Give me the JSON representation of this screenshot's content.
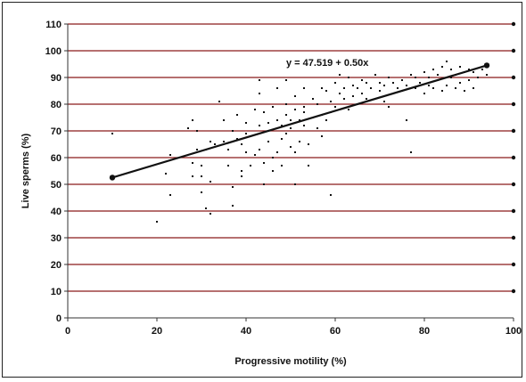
{
  "chart_data": {
    "type": "scatter",
    "xlabel": "Progressive motility (%)",
    "ylabel": "Live sperms (%)",
    "xlim": [
      0,
      100
    ],
    "ylim": [
      0,
      110
    ],
    "xticks": [
      "0",
      "20",
      "40",
      "60",
      "80",
      "100"
    ],
    "yticks": [
      "0",
      "10",
      "20",
      "30",
      "40",
      "50",
      "60",
      "70",
      "80",
      "90",
      "100",
      "110"
    ],
    "grid": "horizontal",
    "gridline_color": "#8b1a1a",
    "point_color": "#111111",
    "annotation": "y = 47.519 + 0.50x",
    "trendline": {
      "intercept": 47.519,
      "slope": 0.5,
      "x": [
        10,
        94
      ]
    },
    "points": [
      [
        10,
        69
      ],
      [
        20,
        36
      ],
      [
        22,
        54
      ],
      [
        23,
        46
      ],
      [
        23,
        61
      ],
      [
        27,
        71
      ],
      [
        28,
        74
      ],
      [
        28,
        58
      ],
      [
        28,
        53
      ],
      [
        29,
        70
      ],
      [
        29,
        63
      ],
      [
        30,
        57
      ],
      [
        30,
        47
      ],
      [
        30,
        53
      ],
      [
        31,
        41
      ],
      [
        31,
        63
      ],
      [
        32,
        51
      ],
      [
        32,
        39
      ],
      [
        32,
        66
      ],
      [
        33,
        65
      ],
      [
        34,
        81
      ],
      [
        35,
        74
      ],
      [
        35,
        66
      ],
      [
        36,
        63
      ],
      [
        36,
        57
      ],
      [
        37,
        49
      ],
      [
        37,
        42
      ],
      [
        37,
        70
      ],
      [
        38,
        67
      ],
      [
        38,
        76
      ],
      [
        39,
        65
      ],
      [
        39,
        55
      ],
      [
        39,
        53
      ],
      [
        40,
        69
      ],
      [
        40,
        62
      ],
      [
        40,
        73
      ],
      [
        41,
        68
      ],
      [
        41,
        57
      ],
      [
        42,
        61
      ],
      [
        42,
        78
      ],
      [
        43,
        84
      ],
      [
        43,
        89
      ],
      [
        43,
        72
      ],
      [
        43,
        63
      ],
      [
        44,
        77
      ],
      [
        44,
        58
      ],
      [
        44,
        50
      ],
      [
        45,
        73
      ],
      [
        45,
        66
      ],
      [
        45,
        70
      ],
      [
        46,
        79
      ],
      [
        46,
        60
      ],
      [
        46,
        55
      ],
      [
        47,
        74
      ],
      [
        47,
        62
      ],
      [
        47,
        86
      ],
      [
        48,
        67
      ],
      [
        48,
        57
      ],
      [
        48,
        72
      ],
      [
        49,
        80
      ],
      [
        49,
        76
      ],
      [
        49,
        69
      ],
      [
        49,
        89
      ],
      [
        50,
        71
      ],
      [
        50,
        64
      ],
      [
        50,
        74
      ],
      [
        51,
        83
      ],
      [
        51,
        78
      ],
      [
        51,
        62
      ],
      [
        51,
        50
      ],
      [
        52,
        74
      ],
      [
        52,
        66
      ],
      [
        53,
        79
      ],
      [
        53,
        86
      ],
      [
        53,
        77
      ],
      [
        53,
        72
      ],
      [
        54,
        65
      ],
      [
        54,
        57
      ],
      [
        55,
        82
      ],
      [
        55,
        75
      ],
      [
        56,
        71
      ],
      [
        56,
        80
      ],
      [
        57,
        86
      ],
      [
        57,
        76
      ],
      [
        57,
        68
      ],
      [
        58,
        74
      ],
      [
        58,
        85
      ],
      [
        59,
        81
      ],
      [
        59,
        46
      ],
      [
        59,
        77
      ],
      [
        60,
        79
      ],
      [
        60,
        88
      ],
      [
        61,
        84
      ],
      [
        61,
        91
      ],
      [
        62,
        82
      ],
      [
        62,
        86
      ],
      [
        63,
        78
      ],
      [
        63,
        90
      ],
      [
        64,
        83
      ],
      [
        64,
        87
      ],
      [
        65,
        80
      ],
      [
        65,
        86
      ],
      [
        66,
        84
      ],
      [
        66,
        89
      ],
      [
        67,
        88
      ],
      [
        67,
        82
      ],
      [
        68,
        86
      ],
      [
        69,
        91
      ],
      [
        70,
        85
      ],
      [
        70,
        88
      ],
      [
        71,
        81
      ],
      [
        71,
        87
      ],
      [
        72,
        79
      ],
      [
        72,
        90
      ],
      [
        73,
        84
      ],
      [
        73,
        88
      ],
      [
        74,
        86
      ],
      [
        75,
        89
      ],
      [
        75,
        85
      ],
      [
        76,
        74
      ],
      [
        76,
        87
      ],
      [
        77,
        62
      ],
      [
        77,
        91
      ],
      [
        78,
        86
      ],
      [
        78,
        90
      ],
      [
        79,
        88
      ],
      [
        80,
        84
      ],
      [
        80,
        92
      ],
      [
        81,
        87
      ],
      [
        81,
        90
      ],
      [
        82,
        86
      ],
      [
        82,
        93
      ],
      [
        83,
        89
      ],
      [
        83,
        91
      ],
      [
        84,
        85
      ],
      [
        84,
        94
      ],
      [
        85,
        87
      ],
      [
        85,
        96
      ],
      [
        86,
        90
      ],
      [
        86,
        93
      ],
      [
        87,
        86
      ],
      [
        87,
        91
      ],
      [
        88,
        88
      ],
      [
        88,
        94
      ],
      [
        89,
        85
      ],
      [
        89,
        92
      ],
      [
        90,
        89
      ],
      [
        90,
        93
      ],
      [
        91,
        86
      ],
      [
        91,
        92
      ],
      [
        92,
        90
      ],
      [
        93,
        93
      ],
      [
        94,
        91
      ],
      [
        94,
        95
      ]
    ]
  }
}
